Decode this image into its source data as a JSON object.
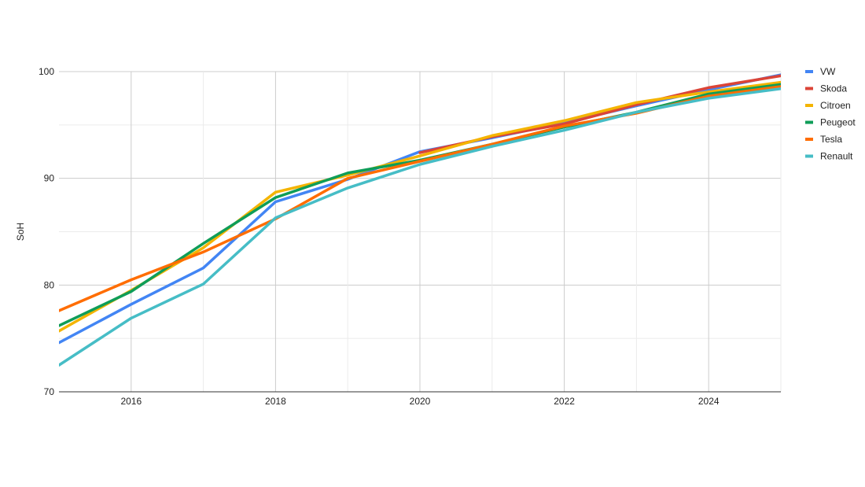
{
  "chart_data": {
    "type": "line",
    "title": "",
    "xlabel": "",
    "ylabel": "SoH",
    "xlim": [
      2015,
      2025
    ],
    "ylim": [
      70,
      100
    ],
    "x_ticks": [
      "2016",
      "2018",
      "2020",
      "2022",
      "2024"
    ],
    "y_ticks": [
      "70",
      "80",
      "90",
      "100"
    ],
    "grid": true,
    "legend_position": "right",
    "x": [
      2015,
      2016,
      2017,
      2018,
      2019,
      2020,
      2021,
      2022,
      2023,
      2024,
      2025
    ],
    "series": [
      {
        "name": "VW",
        "color": "#4285f4",
        "values": [
          74.6,
          78.2,
          81.6,
          87.8,
          89.9,
          92.5,
          93.8,
          95.2,
          96.8,
          98.3,
          99.7
        ]
      },
      {
        "name": "Skoda",
        "color": "#db4437",
        "values": [
          null,
          null,
          null,
          null,
          null,
          92.4,
          93.9,
          95.1,
          96.9,
          98.5,
          99.6
        ]
      },
      {
        "name": "Citroen",
        "color": "#f4b400",
        "values": [
          75.7,
          79.5,
          83.5,
          88.7,
          90.3,
          92.1,
          94.0,
          95.4,
          97.1,
          98.1,
          99.0
        ]
      },
      {
        "name": "Peugeot",
        "color": "#0f9d58",
        "values": [
          76.2,
          79.4,
          83.9,
          88.2,
          90.5,
          91.7,
          93.2,
          94.8,
          96.2,
          97.9,
          98.8
        ]
      },
      {
        "name": "Tesla",
        "color": "#ff6d01",
        "values": [
          77.6,
          80.5,
          83.1,
          86.2,
          90.0,
          91.6,
          93.2,
          94.9,
          96.1,
          97.7,
          98.6
        ]
      },
      {
        "name": "Renault",
        "color": "#46bdc6",
        "values": [
          72.5,
          76.9,
          80.1,
          86.3,
          89.1,
          91.3,
          93.0,
          94.5,
          96.2,
          97.5,
          98.4
        ]
      }
    ]
  }
}
